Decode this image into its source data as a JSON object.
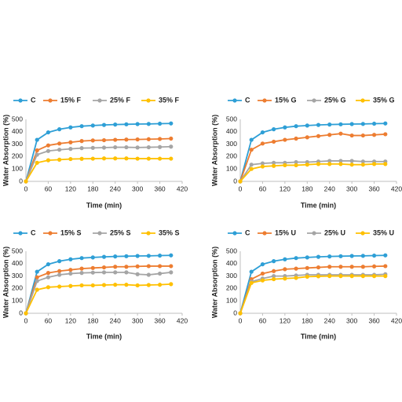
{
  "chart_data": [
    {
      "type": "line",
      "x_label": "Time (min)",
      "y_label": "Water Absorption (%)",
      "x": [
        0,
        30,
        60,
        90,
        120,
        150,
        180,
        210,
        240,
        270,
        300,
        330,
        360,
        390
      ],
      "xlim": [
        0,
        420
      ],
      "xticks": [
        0,
        60,
        120,
        180,
        240,
        300,
        360,
        420
      ],
      "ylim": [
        0,
        500
      ],
      "yticks": [
        0,
        100,
        200,
        300,
        400,
        500
      ],
      "series": [
        {
          "name": "C",
          "color": "#2e9fd6",
          "values": [
            0,
            335,
            395,
            420,
            435,
            445,
            450,
            455,
            458,
            460,
            462,
            463,
            465,
            467
          ]
        },
        {
          "name": "15% F",
          "color": "#ed7d31",
          "values": [
            0,
            250,
            290,
            305,
            315,
            325,
            330,
            332,
            335,
            337,
            338,
            340,
            342,
            345
          ]
        },
        {
          "name": "25% F",
          "color": "#a5a5a5",
          "values": [
            0,
            215,
            245,
            255,
            262,
            268,
            270,
            272,
            275,
            275,
            273,
            275,
            277,
            280
          ]
        },
        {
          "name": "35% F",
          "color": "#ffc000",
          "values": [
            0,
            150,
            170,
            175,
            180,
            182,
            183,
            185,
            185,
            185,
            183,
            183,
            183,
            183
          ]
        }
      ]
    },
    {
      "type": "line",
      "x_label": "Time (min)",
      "y_label": "Water Absorption (%)",
      "x": [
        0,
        30,
        60,
        90,
        120,
        150,
        180,
        210,
        240,
        270,
        300,
        330,
        360,
        390
      ],
      "xlim": [
        0,
        420
      ],
      "xticks": [
        0,
        60,
        120,
        180,
        240,
        300,
        360,
        420
      ],
      "ylim": [
        0,
        500
      ],
      "yticks": [
        0,
        100,
        200,
        300,
        400,
        500
      ],
      "series": [
        {
          "name": "C",
          "color": "#2e9fd6",
          "values": [
            0,
            335,
            395,
            420,
            435,
            445,
            450,
            455,
            458,
            460,
            462,
            463,
            465,
            467
          ]
        },
        {
          "name": "15% G",
          "color": "#ed7d31",
          "values": [
            0,
            255,
            305,
            320,
            335,
            345,
            355,
            365,
            375,
            385,
            370,
            370,
            375,
            380
          ]
        },
        {
          "name": "25% G",
          "color": "#a5a5a5",
          "values": [
            0,
            135,
            145,
            150,
            150,
            155,
            155,
            160,
            165,
            165,
            165,
            160,
            160,
            160
          ]
        },
        {
          "name": "35% G",
          "color": "#ffc000",
          "values": [
            0,
            100,
            120,
            125,
            130,
            130,
            135,
            140,
            140,
            140,
            135,
            135,
            140,
            140
          ]
        }
      ]
    },
    {
      "type": "line",
      "x_label": "Time (min)",
      "y_label": "Water Absorption (%)",
      "x": [
        0,
        30,
        60,
        90,
        120,
        150,
        180,
        210,
        240,
        270,
        300,
        330,
        360,
        390
      ],
      "xlim": [
        0,
        420
      ],
      "xticks": [
        0,
        60,
        120,
        180,
        240,
        300,
        360,
        420
      ],
      "ylim": [
        0,
        500
      ],
      "yticks": [
        0,
        100,
        200,
        300,
        400,
        500
      ],
      "series": [
        {
          "name": "C",
          "color": "#2e9fd6",
          "values": [
            0,
            335,
            395,
            420,
            435,
            445,
            450,
            455,
            458,
            460,
            462,
            463,
            465,
            467
          ]
        },
        {
          "name": "15% S",
          "color": "#ed7d31",
          "values": [
            0,
            290,
            325,
            340,
            350,
            360,
            365,
            370,
            375,
            375,
            378,
            380,
            380,
            380
          ]
        },
        {
          "name": "25% S",
          "color": "#a5a5a5",
          "values": [
            0,
            260,
            290,
            310,
            320,
            325,
            328,
            330,
            330,
            330,
            315,
            310,
            320,
            330
          ]
        },
        {
          "name": "35% S",
          "color": "#ffc000",
          "values": [
            0,
            190,
            210,
            215,
            220,
            225,
            225,
            228,
            230,
            230,
            225,
            228,
            230,
            235
          ]
        }
      ]
    },
    {
      "type": "line",
      "x_label": "Time (min)",
      "y_label": "Water Absorption (%)",
      "x": [
        0,
        30,
        60,
        90,
        120,
        150,
        180,
        210,
        240,
        270,
        300,
        330,
        360,
        390
      ],
      "xlim": [
        0,
        420
      ],
      "xticks": [
        0,
        60,
        120,
        180,
        240,
        300,
        360,
        420
      ],
      "ylim": [
        0,
        500
      ],
      "yticks": [
        0,
        100,
        200,
        300,
        400,
        500
      ],
      "series": [
        {
          "name": "C",
          "color": "#2e9fd6",
          "values": [
            0,
            335,
            395,
            420,
            435,
            445,
            450,
            455,
            458,
            460,
            462,
            463,
            465,
            467
          ]
        },
        {
          "name": "15% U",
          "color": "#ed7d31",
          "values": [
            0,
            275,
            320,
            340,
            355,
            360,
            365,
            370,
            375,
            375,
            375,
            375,
            378,
            380
          ]
        },
        {
          "name": "25% U",
          "color": "#a5a5a5",
          "values": [
            0,
            255,
            280,
            300,
            300,
            305,
            310,
            310,
            310,
            310,
            310,
            310,
            310,
            315
          ]
        },
        {
          "name": "35% U",
          "color": "#ffc000",
          "values": [
            0,
            245,
            265,
            275,
            280,
            285,
            295,
            298,
            300,
            300,
            300,
            300,
            300,
            300
          ]
        }
      ]
    }
  ]
}
